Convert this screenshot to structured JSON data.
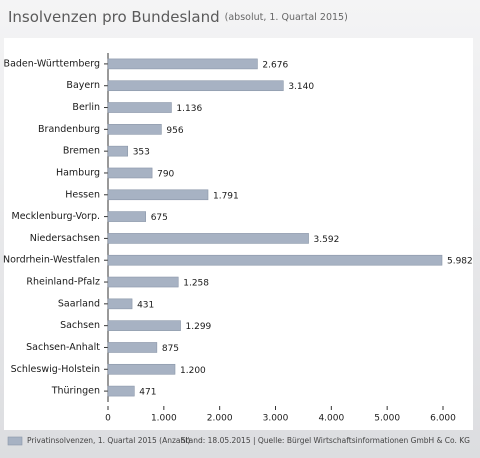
{
  "chart_data": {
    "type": "bar",
    "orientation": "horizontal",
    "title": "Insolvenzen pro Bundesland",
    "subtitle": "(absolut, 1. Quartal 2015)",
    "categories": [
      "Baden-Württemberg",
      "Bayern",
      "Berlin",
      "Brandenburg",
      "Bremen",
      "Hamburg",
      "Hessen",
      "Mecklenburg-Vorp.",
      "Niedersachsen",
      "Nordrhein-Westfalen",
      "Rheinland-Pfalz",
      "Saarland",
      "Sachsen",
      "Sachsen-Anhalt",
      "Schleswig-Holstein",
      "Thüringen"
    ],
    "series": [
      {
        "name": "Privatinsolvenzen, 1. Quartal 2015 (Anzahl)",
        "color": "#a7b2c3",
        "values": [
          2676,
          3140,
          1136,
          956,
          353,
          790,
          1791,
          675,
          3592,
          5982,
          1258,
          431,
          1299,
          875,
          1200,
          471
        ],
        "value_labels": [
          "2.676",
          "3.140",
          "1.136",
          "956",
          "353",
          "790",
          "1.791",
          "675",
          "3.592",
          "5.982",
          "1.258",
          "431",
          "1.299",
          "875",
          "1.200",
          "471"
        ]
      }
    ],
    "xlim": [
      0,
      6000
    ],
    "xticks": [
      0,
      {
        "value": 1000,
        "label": "1.000"
      },
      {
        "value": 2000,
        "label": "2.000"
      },
      {
        "value": 3000,
        "label": "3.000"
      },
      {
        "value": 4000,
        "label": "4.000"
      },
      {
        "value": 5000,
        "label": "5.000"
      },
      {
        "value": 6000,
        "label": "6.000"
      }
    ],
    "grid": false,
    "legend": "bottom-left",
    "source": "Stand: 18.05.2015 | Quelle: Bürgel Wirtschaftsinformationen GmbH & Co. KG"
  }
}
